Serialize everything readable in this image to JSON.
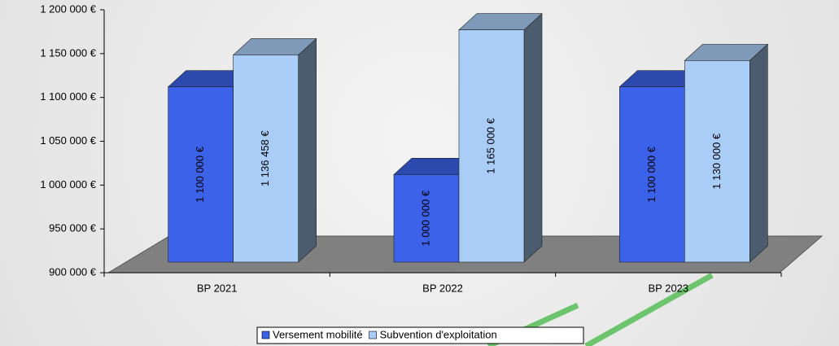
{
  "chart_data": {
    "type": "bar3d",
    "categories": [
      "BP 2021",
      "BP 2022",
      "BP 2023"
    ],
    "series": [
      {
        "name": "Versement mobilité",
        "color": "#3b62e8",
        "values": [
          1100000,
          1000000,
          1100000
        ],
        "value_labels": [
          "1 100 000 €",
          "1 000 000 €",
          "1 100 000 €"
        ]
      },
      {
        "name": "Subvention d'exploitation",
        "color": "#a9cdf7",
        "values": [
          1136458,
          1165000,
          1130000
        ],
        "value_labels": [
          "1 136 458 €",
          "1 165 000 €",
          "1 130 000 €"
        ]
      }
    ],
    "ylim": [
      900000,
      1200000
    ],
    "yticks": [
      {
        "value": 900000,
        "label": "900 000 €"
      },
      {
        "value": 950000,
        "label": "950 000 €"
      },
      {
        "value": 1000000,
        "label": "1 000 000 €"
      },
      {
        "value": 1050000,
        "label": "1 050 000 €"
      },
      {
        "value": 1100000,
        "label": "1 100 000 €"
      },
      {
        "value": 1150000,
        "label": "1 150 000 €"
      },
      {
        "value": 1200000,
        "label": "1 200 000 €"
      }
    ],
    "legend": "bottom"
  }
}
